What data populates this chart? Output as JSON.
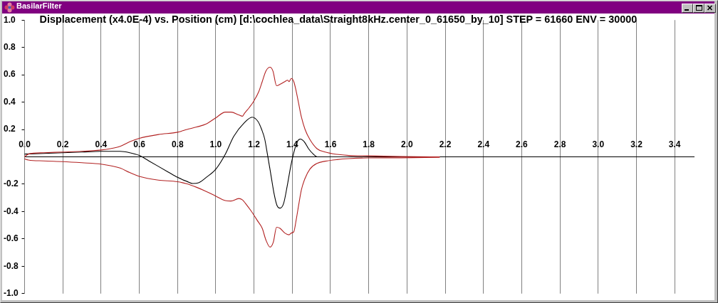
{
  "chart_data": {
    "type": "line",
    "title": "Displacement (x4.0E-4) vs. Position (cm) [d:\\cochlea_data\\Straight8kHz.center_0_61650_by_10] STEP = 61660 ENV = 30000",
    "annotations": [
      "BasilarFilter"
    ],
    "xlim": [
      0,
      3.5
    ],
    "xticks": [
      {
        "value": 0,
        "label": "0.0"
      },
      0.2,
      0.4,
      0.6,
      0.8,
      {
        "value": 1,
        "label": "1.0"
      },
      1.2,
      1.4,
      1.6,
      1.8,
      {
        "value": 2,
        "label": "2.0"
      },
      2.2,
      2.4,
      2.6,
      2.8,
      {
        "value": 3,
        "label": "3.0"
      },
      3.2,
      3.4
    ],
    "ylim": [
      -1,
      1
    ],
    "yticks": [
      {
        "value": 1,
        "label": "1.0"
      },
      0.8,
      0.6,
      0.4,
      0.2,
      -0.2,
      -0.4,
      -0.6,
      -0.8,
      {
        "value": -1,
        "label": "-1.0"
      }
    ],
    "grid": "x",
    "legend": false,
    "marker": "none",
    "line_style": "solid",
    "series": [
      {
        "color": "#b22222",
        "x": [
          0,
          0.02,
          0.1,
          0.2,
          0.3,
          0.4,
          0.45,
          0.5,
          0.55,
          0.6,
          0.7,
          0.8,
          0.85,
          0.9,
          0.95,
          1.0,
          1.05,
          1.08,
          1.12,
          1.14,
          1.15,
          1.175,
          1.2,
          1.225,
          1.243,
          1.262,
          1.284,
          1.299,
          1.318,
          1.336,
          1.361,
          1.376,
          1.383,
          1.395,
          1.408,
          1.421,
          1.433,
          1.448,
          1.467,
          1.492,
          1.529,
          1.572,
          1.634,
          1.696,
          1.796,
          1.97,
          2.17
        ],
        "values": [
          0,
          0.02,
          0.03,
          0.035,
          0.04,
          0.05,
          0.06,
          0.077,
          0.11,
          0.135,
          0.163,
          0.18,
          0.2,
          0.218,
          0.24,
          0.285,
          0.327,
          0.327,
          0.307,
          0.297,
          0.318,
          0.36,
          0.41,
          0.477,
          0.55,
          0.627,
          0.655,
          0.627,
          0.52,
          0.53,
          0.55,
          0.56,
          0.55,
          0.573,
          0.55,
          0.477,
          0.393,
          0.29,
          0.2,
          0.127,
          0.06,
          0.035,
          0.018,
          0.01,
          0.007,
          0.002,
          0
        ]
      },
      {
        "color": "#b22222",
        "x": [
          0,
          0.02,
          0.1,
          0.2,
          0.3,
          0.4,
          0.45,
          0.5,
          0.55,
          0.6,
          0.7,
          0.8,
          0.85,
          0.9,
          0.95,
          1.0,
          1.05,
          1.08,
          1.12,
          1.14,
          1.155,
          1.186,
          1.217,
          1.243,
          1.262,
          1.284,
          1.301,
          1.318,
          1.336,
          1.361,
          1.383,
          1.395,
          1.408,
          1.421,
          1.433,
          1.448,
          1.467,
          1.492,
          1.529,
          1.572,
          1.634,
          1.696,
          1.796,
          1.97,
          2.17
        ],
        "values": [
          -0.015,
          -0.023,
          -0.03,
          -0.035,
          -0.043,
          -0.053,
          -0.065,
          -0.082,
          -0.115,
          -0.143,
          -0.17,
          -0.182,
          -0.198,
          -0.223,
          -0.253,
          -0.287,
          -0.32,
          -0.323,
          -0.305,
          -0.315,
          -0.34,
          -0.398,
          -0.465,
          -0.523,
          -0.607,
          -0.66,
          -0.623,
          -0.515,
          -0.523,
          -0.557,
          -0.57,
          -0.557,
          -0.548,
          -0.457,
          -0.357,
          -0.24,
          -0.157,
          -0.09,
          -0.048,
          -0.032,
          -0.02,
          -0.013,
          -0.008,
          -0.007,
          -0.003
        ]
      },
      {
        "color": "#000000",
        "x": [
          0,
          0.1,
          0.2,
          0.3,
          0.4,
          0.5,
          0.55,
          0.6,
          0.65,
          0.7,
          0.75,
          0.8,
          0.85,
          0.88,
          0.91,
          0.95,
          1.0,
          1.05,
          1.094,
          1.15,
          1.19,
          1.22,
          1.24,
          1.256,
          1.27,
          1.287,
          1.305,
          1.32,
          1.336,
          1.355,
          1.374,
          1.392,
          1.408,
          1.426,
          1.442,
          1.463,
          1.485,
          1.51,
          1.53,
          3.5
        ],
        "values": [
          0.02,
          0.025,
          0.03,
          0.035,
          0.04,
          0.04,
          0.03,
          0.01,
          -0.03,
          -0.07,
          -0.11,
          -0.15,
          -0.18,
          -0.195,
          -0.19,
          -0.15,
          -0.09,
          0.02,
          0.15,
          0.25,
          0.29,
          0.26,
          0.2,
          0.13,
          0.02,
          -0.12,
          -0.27,
          -0.355,
          -0.375,
          -0.34,
          -0.21,
          -0.07,
          0.03,
          0.11,
          0.13,
          0.11,
          0.06,
          0.02,
          0,
          0
        ]
      }
    ]
  }
}
